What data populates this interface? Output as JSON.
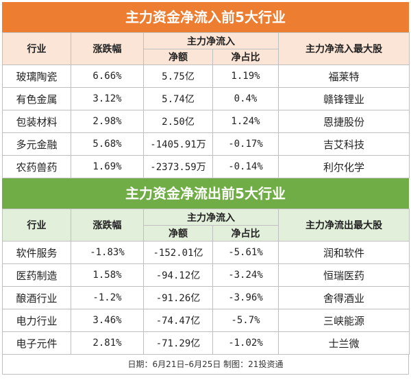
{
  "inflow": {
    "title": "主力资金净流入前5大行业",
    "headers": {
      "industry": "行业",
      "change": "涨跌幅",
      "main_flow": "主力净流入",
      "net_amount": "净额",
      "net_ratio": "净占比",
      "top_stock": "主力净流入最大股"
    },
    "rows": [
      {
        "industry": "玻璃陶瓷",
        "change": "6.66%",
        "net_amount": "5.75亿",
        "net_ratio": "1.19%",
        "top_stock": "福莱特"
      },
      {
        "industry": "有色金属",
        "change": "3.12%",
        "net_amount": "5.74亿",
        "net_ratio": "0.4%",
        "top_stock": "赣锋锂业"
      },
      {
        "industry": "包装材料",
        "change": "2.98%",
        "net_amount": "2.50亿",
        "net_ratio": "1.24%",
        "top_stock": "恩捷股份"
      },
      {
        "industry": "多元金融",
        "change": "5.68%",
        "net_amount": "-1405.91万",
        "net_ratio": "-0.17%",
        "top_stock": "吉艾科技"
      },
      {
        "industry": "农药兽药",
        "change": "1.69%",
        "net_amount": "-2373.59万",
        "net_ratio": "-0.14%",
        "top_stock": "利尔化学"
      }
    ]
  },
  "outflow": {
    "title": "主力资金净流出前5大行业",
    "headers": {
      "industry": "行业",
      "change": "涨跌幅",
      "main_flow": "主力净流入",
      "net_amount": "净额",
      "net_ratio": "净占比",
      "top_stock": "主力净流出最大股"
    },
    "rows": [
      {
        "industry": "软件服务",
        "change": "-1.83%",
        "net_amount": "-152.01亿",
        "net_ratio": "-5.61%",
        "top_stock": "润和软件"
      },
      {
        "industry": "医药制造",
        "change": "1.58%",
        "net_amount": "-94.12亿",
        "net_ratio": "-3.24%",
        "top_stock": "恒瑞医药"
      },
      {
        "industry": "酿酒行业",
        "change": "-1.2%",
        "net_amount": "-91.26亿",
        "net_ratio": "-3.96%",
        "top_stock": "舍得酒业"
      },
      {
        "industry": "电力行业",
        "change": "3.46%",
        "net_amount": "-74.47亿",
        "net_ratio": "-5.7%",
        "top_stock": "三峡能源"
      },
      {
        "industry": "电子元件",
        "change": "2.81%",
        "net_amount": "-71.29亿",
        "net_ratio": "-1.02%",
        "top_stock": "士兰微"
      }
    ]
  },
  "footer": "日期：6月21日–6月25日  制图：21投资通",
  "colors": {
    "inflow_accent": "#ed7d31",
    "outflow_accent": "#70ad47"
  }
}
